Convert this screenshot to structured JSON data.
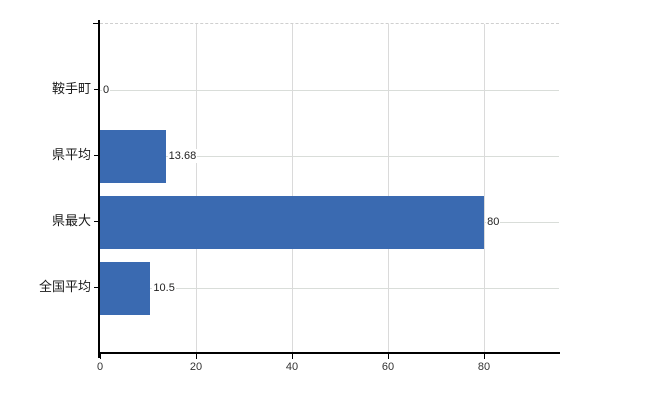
{
  "chart_data": {
    "type": "bar",
    "orientation": "horizontal",
    "categories": [
      "鞍手町",
      "県平均",
      "県最大",
      "全国平均"
    ],
    "values": [
      0,
      13.68,
      80,
      10.5
    ],
    "value_labels": [
      "0",
      "13.68",
      "80",
      "10.5"
    ],
    "xticks": [
      0,
      20,
      40,
      60,
      80
    ],
    "xtick_labels": [
      "0",
      "20",
      "40",
      "60",
      "80"
    ],
    "xlim": [
      0,
      95.6
    ],
    "grid": true,
    "legend_position": "none",
    "bar_color": "#3a6ab1",
    "colors": {
      "axis": "#000000",
      "h_gridline": "#d9ddd9",
      "v_gridline": "#dadada",
      "plot_top_border": "#cfcfcf",
      "category_text": "#1a1a1a",
      "value_text": "#222222",
      "tick_text": "#333333",
      "background": "#ffffff"
    }
  }
}
